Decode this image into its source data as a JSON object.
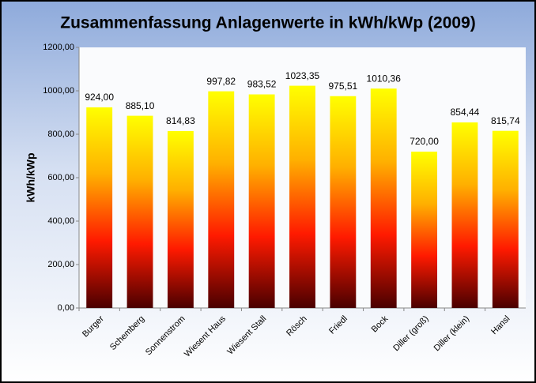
{
  "chart_data": {
    "type": "bar",
    "title": "Zusammenfassung Anlagenwerte in kWh/kWp (2009)",
    "y_label": "kWh/kWp",
    "categories": [
      "Burger",
      "Schemberg",
      "Sonnenstrom",
      "Wiesent Haus",
      "Wiesent Stall",
      "Rösch",
      "Friedl",
      "Bock",
      "Diller (groß)",
      "Diller (klein)",
      "Hansl"
    ],
    "values": [
      924.0,
      885.1,
      814.83,
      997.82,
      983.52,
      1023.35,
      975.51,
      1010.36,
      720.0,
      854.44,
      815.74
    ],
    "value_labels": [
      "924,00",
      "885,10",
      "814,83",
      "997,82",
      "983,52",
      "1023,35",
      "975,51",
      "1010,36",
      "720,00",
      "854,44",
      "815,74"
    ],
    "colors": [
      "#ffff00",
      "#ffb000",
      "#ff1a00",
      "#4a0000"
    ],
    "ylim": [
      0,
      1200
    ],
    "yticks": [
      {
        "value": 0,
        "label": "0,00"
      },
      {
        "value": 200,
        "label": "200,00"
      },
      {
        "value": 400,
        "label": "400,00"
      },
      {
        "value": 600,
        "label": "600,00"
      },
      {
        "value": 800,
        "label": "800,00"
      },
      {
        "value": 1000,
        "label": "1000,00"
      },
      {
        "value": 1200,
        "label": "1200,00"
      }
    ],
    "grid": false
  }
}
